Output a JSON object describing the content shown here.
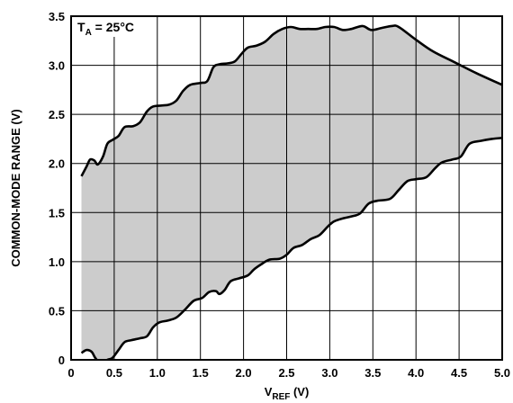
{
  "chart_data": {
    "type": "area",
    "title": "",
    "xlabel": {
      "main": "V",
      "sub": "REF",
      "unit": " (V)"
    },
    "ylabel": "COMMON-MODE RANGE (V)",
    "annotation": {
      "main": "T",
      "sub": "A",
      "rest": " = 25°C"
    },
    "xlim": [
      0,
      5
    ],
    "ylim": [
      0,
      3.5
    ],
    "xticks": [
      0,
      0.5,
      1.0,
      1.5,
      2.0,
      2.5,
      3.0,
      3.5,
      4.0,
      4.5,
      5.0
    ],
    "xtick_labels": [
      "0",
      "0.5",
      "1.0",
      "1.5",
      "2.0",
      "2.5",
      "3.0",
      "3.5",
      "4.0",
      "4.5",
      "5.0"
    ],
    "yticks": [
      0,
      0.5,
      1.0,
      1.5,
      2.0,
      2.5,
      3.0,
      3.5
    ],
    "ytick_labels": [
      "0",
      "0.5",
      "1.0",
      "1.5",
      "2.0",
      "2.5",
      "3.0",
      "3.5"
    ],
    "grid": true,
    "fill_color": "#cccccc",
    "line_color": "#000000",
    "series": [
      {
        "values": [
          [
            0.12,
            1.87
          ],
          [
            0.18,
            1.97
          ],
          [
            0.22,
            2.04
          ],
          [
            0.27,
            2.03
          ],
          [
            0.31,
            1.99
          ],
          [
            0.37,
            2.07
          ],
          [
            0.42,
            2.2
          ],
          [
            0.48,
            2.24
          ],
          [
            0.55,
            2.28
          ],
          [
            0.62,
            2.37
          ],
          [
            0.72,
            2.38
          ],
          [
            0.8,
            2.42
          ],
          [
            0.88,
            2.53
          ],
          [
            0.95,
            2.58
          ],
          [
            1.05,
            2.59
          ],
          [
            1.14,
            2.6
          ],
          [
            1.22,
            2.64
          ],
          [
            1.3,
            2.74
          ],
          [
            1.38,
            2.8
          ],
          [
            1.5,
            2.82
          ],
          [
            1.58,
            2.84
          ],
          [
            1.65,
            2.98
          ],
          [
            1.72,
            3.01
          ],
          [
            1.82,
            3.02
          ],
          [
            1.9,
            3.04
          ],
          [
            1.98,
            3.12
          ],
          [
            2.05,
            3.18
          ],
          [
            2.15,
            3.2
          ],
          [
            2.25,
            3.24
          ],
          [
            2.35,
            3.32
          ],
          [
            2.45,
            3.37
          ],
          [
            2.55,
            3.39
          ],
          [
            2.65,
            3.37
          ],
          [
            2.75,
            3.37
          ],
          [
            2.85,
            3.37
          ],
          [
            2.95,
            3.39
          ],
          [
            3.05,
            3.39
          ],
          [
            3.15,
            3.36
          ],
          [
            3.25,
            3.37
          ],
          [
            3.38,
            3.4
          ],
          [
            3.48,
            3.36
          ],
          [
            3.6,
            3.38
          ],
          [
            3.72,
            3.4
          ],
          [
            3.8,
            3.39
          ],
          [
            4.0,
            3.26
          ],
          [
            4.2,
            3.14
          ],
          [
            4.45,
            3.03
          ],
          [
            4.7,
            2.92
          ],
          [
            5.0,
            2.8
          ]
        ]
      },
      {
        "values": [
          [
            0.12,
            0.07
          ],
          [
            0.18,
            0.1
          ],
          [
            0.24,
            0.08
          ],
          [
            0.28,
            0.02
          ],
          [
            0.35,
            -0.04
          ],
          [
            0.42,
            0.0
          ],
          [
            0.48,
            0.02
          ],
          [
            0.55,
            0.1
          ],
          [
            0.62,
            0.18
          ],
          [
            0.7,
            0.2
          ],
          [
            0.8,
            0.22
          ],
          [
            0.88,
            0.24
          ],
          [
            0.95,
            0.33
          ],
          [
            1.02,
            0.38
          ],
          [
            1.12,
            0.4
          ],
          [
            1.22,
            0.43
          ],
          [
            1.32,
            0.51
          ],
          [
            1.42,
            0.6
          ],
          [
            1.52,
            0.63
          ],
          [
            1.6,
            0.69
          ],
          [
            1.68,
            0.7
          ],
          [
            1.72,
            0.67
          ],
          [
            1.78,
            0.71
          ],
          [
            1.85,
            0.8
          ],
          [
            1.95,
            0.83
          ],
          [
            2.05,
            0.86
          ],
          [
            2.12,
            0.92
          ],
          [
            2.2,
            0.97
          ],
          [
            2.3,
            1.02
          ],
          [
            2.42,
            1.03
          ],
          [
            2.5,
            1.07
          ],
          [
            2.58,
            1.14
          ],
          [
            2.68,
            1.17
          ],
          [
            2.78,
            1.23
          ],
          [
            2.88,
            1.27
          ],
          [
            2.98,
            1.36
          ],
          [
            3.05,
            1.41
          ],
          [
            3.15,
            1.44
          ],
          [
            3.25,
            1.46
          ],
          [
            3.35,
            1.49
          ],
          [
            3.45,
            1.59
          ],
          [
            3.55,
            1.62
          ],
          [
            3.7,
            1.64
          ],
          [
            3.8,
            1.73
          ],
          [
            3.9,
            1.82
          ],
          [
            4.0,
            1.84
          ],
          [
            4.12,
            1.86
          ],
          [
            4.22,
            1.95
          ],
          [
            4.3,
            2.01
          ],
          [
            4.42,
            2.04
          ],
          [
            4.52,
            2.07
          ],
          [
            4.62,
            2.2
          ],
          [
            4.75,
            2.23
          ],
          [
            4.88,
            2.25
          ],
          [
            5.0,
            2.26
          ]
        ]
      }
    ]
  }
}
